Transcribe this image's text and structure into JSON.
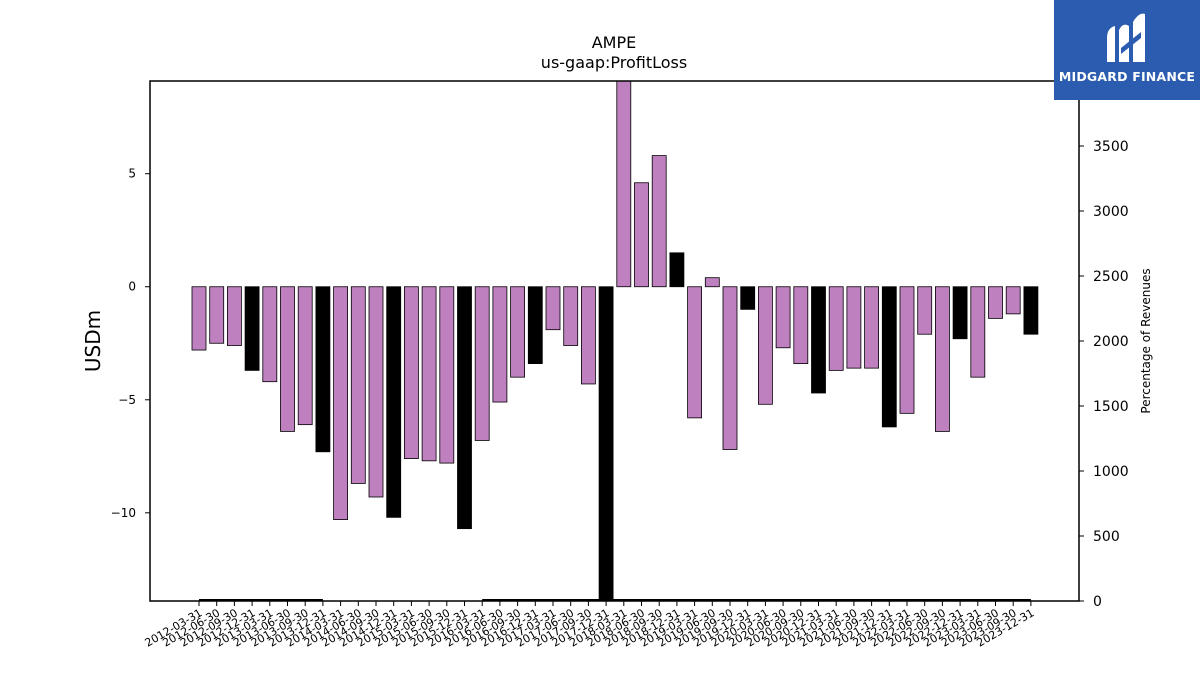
{
  "chart_data": {
    "type": "bar",
    "title": "AMPE",
    "subtitle": "us-gaap:ProfitLoss",
    "ylabel": "USDm",
    "y2label": "Percentage of Revenues",
    "ylim": [
      -13.9,
      9.1
    ],
    "y2lim": [
      0,
      4000
    ],
    "yticks": [
      5,
      0,
      -5,
      -10
    ],
    "y2ticks": [
      0,
      500,
      1000,
      1500,
      2000,
      2500,
      3000,
      3500
    ],
    "categories": [
      "2012-03-31",
      "2012-06-30",
      "2012-09-30",
      "2012-12-31",
      "2013-03-31",
      "2013-06-30",
      "2013-09-30",
      "2013-12-31",
      "2014-03-31",
      "2014-06-30",
      "2014-09-30",
      "2014-12-31",
      "2015-03-31",
      "2015-06-30",
      "2015-09-30",
      "2015-12-31",
      "2016-03-31",
      "2016-06-30",
      "2016-09-30",
      "2016-12-31",
      "2017-03-31",
      "2017-06-30",
      "2017-09-30",
      "2017-12-31",
      "2018-03-31",
      "2018-06-30",
      "2018-09-30",
      "2018-12-31",
      "2019-03-31",
      "2019-06-30",
      "2019-09-30",
      "2019-12-31",
      "2020-03-31",
      "2020-06-30",
      "2020-09-30",
      "2020-12-31",
      "2021-03-31",
      "2021-06-30",
      "2021-09-30",
      "2021-12-31",
      "2022-03-31",
      "2022-06-30",
      "2022-09-30",
      "2022-12-31",
      "2023-03-31",
      "2023-06-30",
      "2023-09-30",
      "2023-12-31"
    ],
    "values": [
      -2.8,
      -2.5,
      -2.6,
      -3.7,
      -4.2,
      -6.4,
      -6.1,
      -7.3,
      -10.3,
      -8.7,
      -9.3,
      -10.2,
      -7.6,
      -7.7,
      -7.8,
      -10.7,
      -6.8,
      -5.1,
      -4.0,
      -3.4,
      -1.9,
      -2.6,
      -4.3,
      -13.9,
      9.1,
      4.6,
      5.8,
      1.5,
      -5.8,
      0.4,
      -7.2,
      -1.0,
      -5.2,
      -2.7,
      -3.4,
      -4.7,
      -3.7,
      -3.6,
      -3.6,
      -6.2,
      -5.6,
      -2.1,
      -6.4,
      -2.3,
      -4.0,
      -1.4,
      -1.2,
      -2.1
    ],
    "annual_flags": [
      false,
      false,
      false,
      true,
      false,
      false,
      false,
      true,
      false,
      false,
      false,
      true,
      false,
      false,
      false,
      true,
      false,
      false,
      false,
      true,
      false,
      false,
      false,
      true,
      false,
      false,
      false,
      true,
      false,
      false,
      false,
      true,
      false,
      false,
      false,
      true,
      false,
      false,
      false,
      true,
      false,
      false,
      false,
      true,
      false,
      false,
      false,
      true
    ],
    "pct_of_revenues": [
      0,
      0,
      0,
      0,
      0,
      0,
      0,
      0,
      null,
      null,
      null,
      null,
      null,
      null,
      null,
      null,
      0,
      0,
      0,
      0,
      0,
      0,
      0,
      0,
      0,
      0,
      0,
      0,
      0,
      0,
      0,
      0,
      0,
      0,
      0,
      0,
      0,
      0,
      0,
      0,
      0,
      0,
      0,
      0,
      0,
      0,
      0,
      0
    ],
    "colors": {
      "quarter": "#bf80bf",
      "annual": "#000000",
      "pct_line": "#000000"
    },
    "grid": false
  },
  "logo": {
    "text": "MIDGARD FINANCE",
    "bg": "#2b5caf"
  }
}
